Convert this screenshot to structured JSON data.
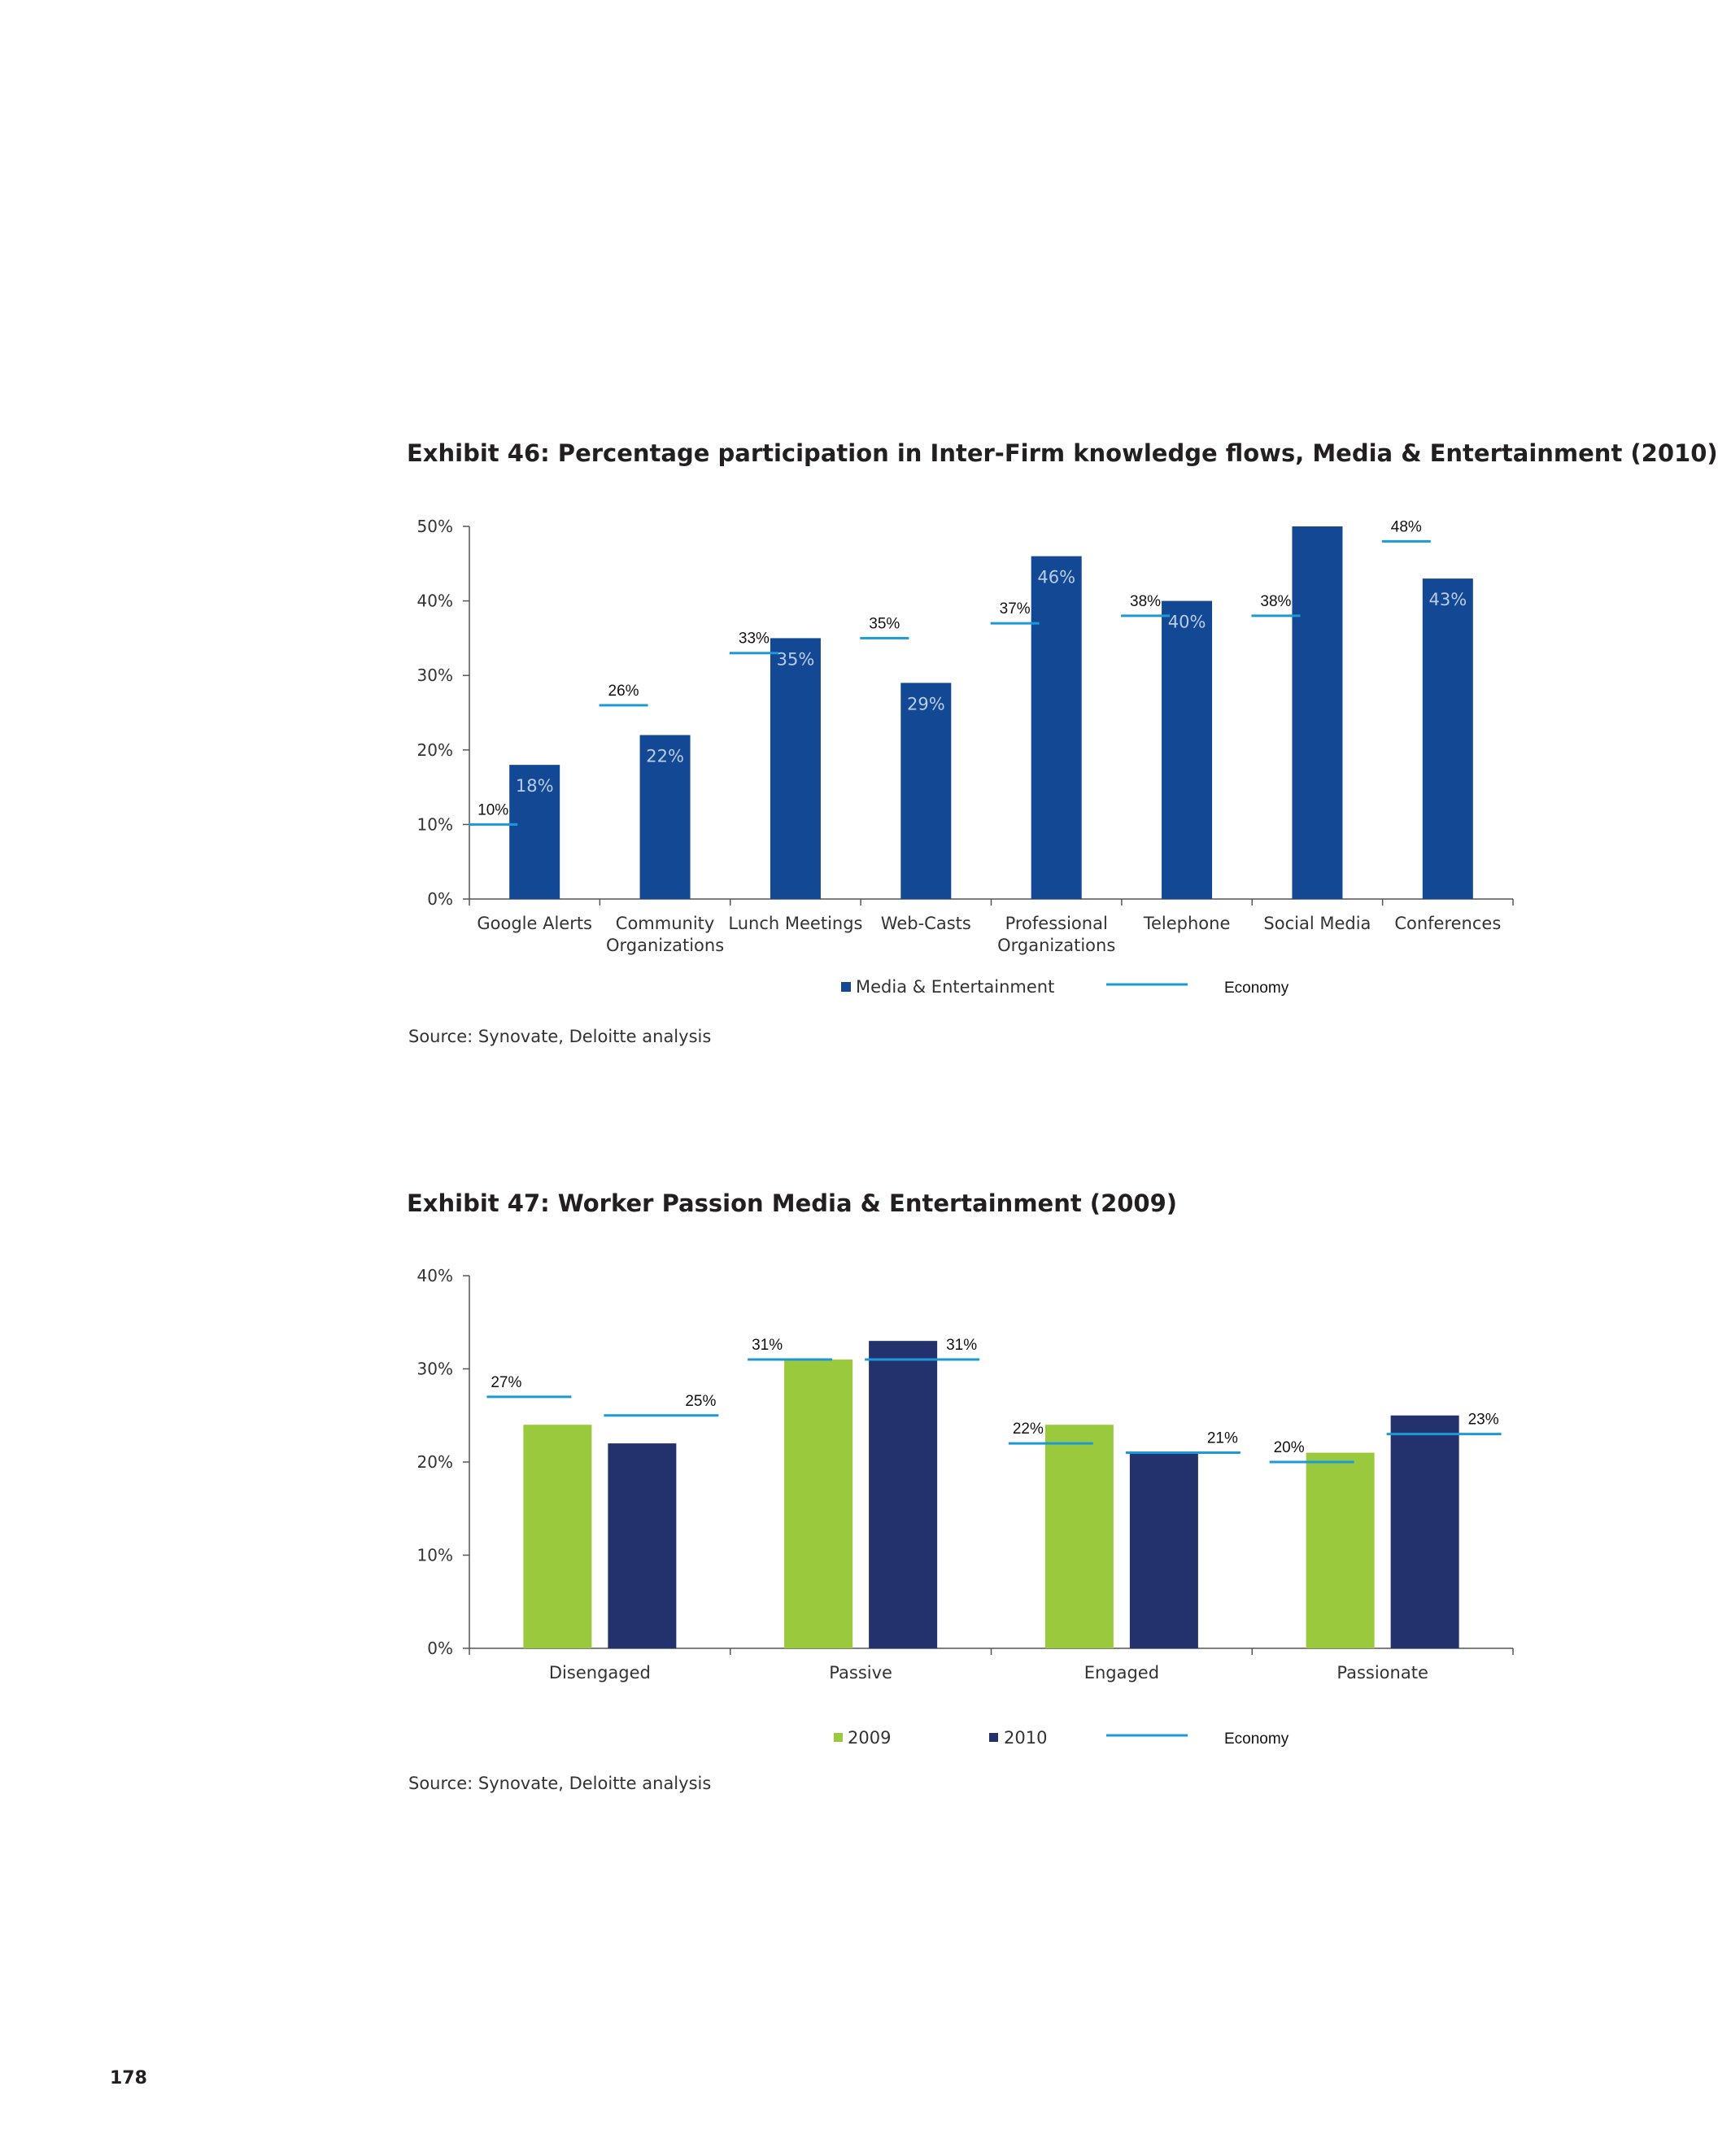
{
  "page_number": "178",
  "colors": {
    "media_entertainment": "#134895",
    "year_2009": "#9bc93d",
    "year_2010": "#23316d",
    "economy": "#1d9ad6",
    "axis": "#555555"
  },
  "exhibit46": {
    "title": "Exhibit 46: Percentage participation in Inter-Firm knowledge flows, Media & Entertainment (2010)",
    "source": "Source: Synovate, Deloitte analysis",
    "chart_data": {
      "type": "bar",
      "categories": [
        [
          "Google Alerts"
        ],
        [
          "Community",
          "Organizations"
        ],
        [
          "Lunch Meetings"
        ],
        [
          "Web-Casts"
        ],
        [
          "Professional",
          "Organizations"
        ],
        [
          "Telephone"
        ],
        [
          "Social Media"
        ],
        [
          "Conferences"
        ]
      ],
      "series": [
        {
          "name": "Media & Entertainment",
          "values": [
            18,
            22,
            35,
            29,
            46,
            40,
            50,
            43
          ],
          "labels": [
            "18%",
            "22%",
            "35%",
            "29%",
            "46%",
            "40%",
            "",
            "43%"
          ]
        }
      ],
      "economy": {
        "name": "Economy",
        "values": [
          10,
          26,
          33,
          35,
          37,
          38,
          38,
          48
        ],
        "labels": [
          "10%",
          "26%",
          "33%",
          "35%",
          "37%",
          "38%",
          "38%",
          "48%"
        ]
      },
      "ylim": [
        0,
        50
      ],
      "yticks": [
        "0%",
        "10%",
        "20%",
        "30%",
        "40%",
        "50%"
      ],
      "legend": [
        "Media & Entertainment",
        "Economy"
      ]
    }
  },
  "exhibit47": {
    "title": "Exhibit 47: Worker Passion Media & Entertainment (2009)",
    "source": "Source: Synovate, Deloitte analysis",
    "chart_data": {
      "type": "bar",
      "categories": [
        [
          "Disengaged"
        ],
        [
          "Passive"
        ],
        [
          "Engaged"
        ],
        [
          "Passionate"
        ]
      ],
      "series": [
        {
          "name": "2009",
          "values": [
            24,
            31,
            24,
            21
          ]
        },
        {
          "name": "2010",
          "values": [
            22,
            33,
            21,
            25
          ]
        }
      ],
      "economy": {
        "name": "Economy",
        "values": [
          27,
          25,
          31,
          31,
          22,
          21,
          20,
          23
        ],
        "labels": [
          "27%",
          "25%",
          "31%",
          "31%",
          "22%",
          "21%",
          "20%",
          "23%"
        ]
      },
      "ylim": [
        0,
        40
      ],
      "yticks": [
        "0%",
        "10%",
        "20%",
        "30%",
        "40%"
      ],
      "legend": [
        "2009",
        "2010",
        "Economy"
      ]
    }
  }
}
